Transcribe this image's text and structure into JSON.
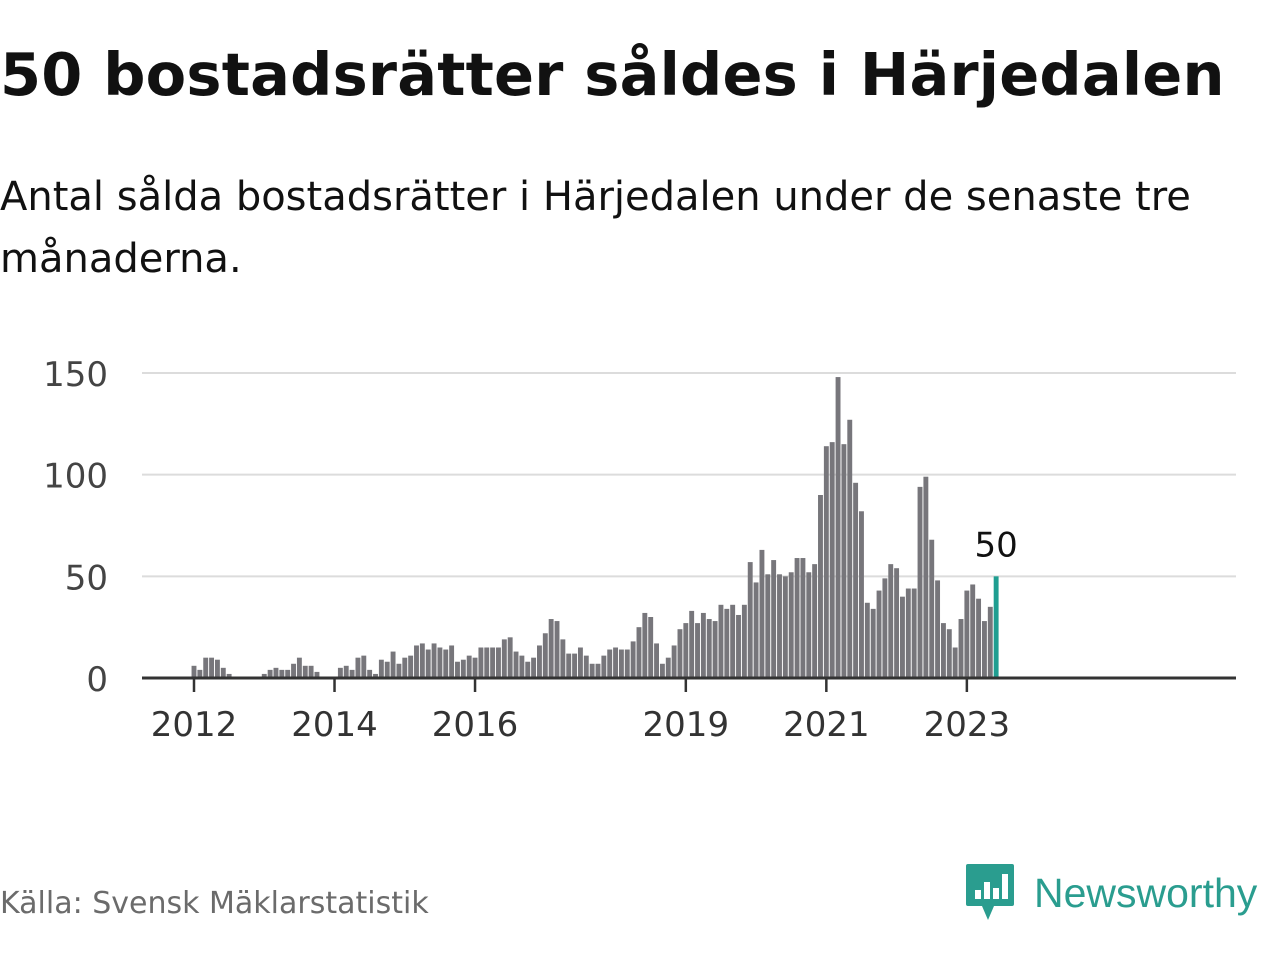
{
  "title": "50 bostadsrätter såldes i Härjedalen",
  "subtitle": "Antal sålda bostadsrätter i Härjedalen under de senaste tre månaderna.",
  "source": "Källa: Svensk Mäklarstatistik",
  "brand": {
    "name": "Newsworthy",
    "icon": "newsworthy-logo-icon",
    "color": "#2a9d8f"
  },
  "chart_data": {
    "type": "bar",
    "ylim": [
      0,
      150
    ],
    "yticks": [
      "0",
      "50",
      "100",
      "150"
    ],
    "xticks": [
      "2012",
      "2014",
      "2016",
      "2019",
      "2021",
      "2023"
    ],
    "grid": true,
    "bar_color": "#77767b",
    "highlight_color": "#1f9e91",
    "highlight_label": "50",
    "values": [
      6,
      4,
      10,
      10,
      9,
      5,
      2,
      0,
      0,
      0,
      0,
      0,
      2,
      4,
      5,
      4,
      4,
      7,
      10,
      6,
      6,
      3,
      0,
      0,
      0,
      5,
      6,
      4,
      10,
      11,
      4,
      2,
      9,
      8,
      13,
      7,
      10,
      11,
      16,
      17,
      14,
      17,
      15,
      14,
      16,
      8,
      9,
      11,
      10,
      15,
      15,
      15,
      15,
      19,
      20,
      13,
      11,
      8,
      10,
      16,
      22,
      29,
      28,
      19,
      12,
      12,
      15,
      11,
      7,
      7,
      11,
      14,
      15,
      14,
      14,
      18,
      25,
      32,
      30,
      17,
      7,
      10,
      16,
      24,
      27,
      33,
      27,
      32,
      29,
      28,
      36,
      34,
      36,
      31,
      36,
      57,
      47,
      63,
      51,
      58,
      51,
      50,
      52,
      59,
      59,
      52,
      56,
      90,
      114,
      116,
      148,
      115,
      127,
      96,
      82,
      37,
      34,
      43,
      49,
      56,
      54,
      40,
      44,
      44,
      94,
      99,
      68,
      48,
      27,
      24,
      15,
      29,
      43,
      46,
      39,
      28,
      35,
      50
    ]
  }
}
